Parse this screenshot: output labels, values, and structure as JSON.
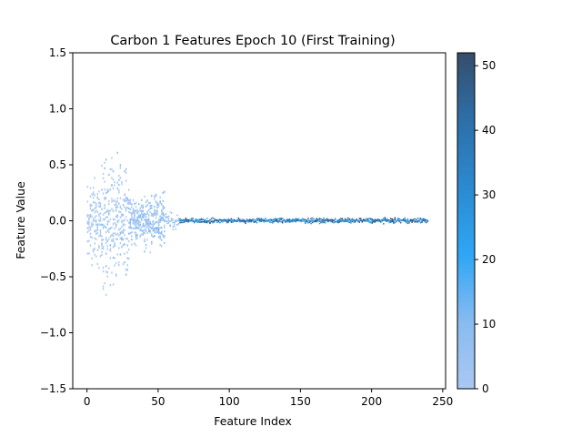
{
  "chart_data": {
    "type": "heatmap",
    "title": "Carbon 1 Features Epoch 10 (First Training)",
    "xlabel": "Feature Index",
    "ylabel": "Feature Value",
    "xlim": [
      -10,
      252
    ],
    "ylim": [
      -1.5,
      1.5
    ],
    "xticks": [
      0,
      50,
      100,
      150,
      200,
      250
    ],
    "xtick_labels": [
      "0",
      "50",
      "100",
      "150",
      "200",
      "250"
    ],
    "yticks": [
      -1.5,
      -1.0,
      -0.5,
      0.0,
      0.5,
      1.0,
      1.5
    ],
    "ytick_labels": [
      "−1.5",
      "−1.0",
      "−0.5",
      "0.0",
      "0.5",
      "1.0",
      "1.5"
    ],
    "colorbar": {
      "range": [
        0,
        52
      ],
      "ticks": [
        0,
        10,
        20,
        30,
        40,
        50
      ],
      "tick_labels": [
        "0",
        "10",
        "20",
        "30",
        "40",
        "50"
      ],
      "colors": [
        "#aac8f2",
        "#88bbf0",
        "#2ea6f5",
        "#2b8ad0",
        "#2d6fa8",
        "#354d6b"
      ]
    },
    "regions": [
      {
        "x": [
          0,
          10
        ],
        "y_spread": 0.45,
        "count_level": 4
      },
      {
        "x": [
          10,
          20
        ],
        "y_spread": 0.8,
        "count_level": 5
      },
      {
        "x": [
          20,
          30
        ],
        "y_spread": 0.7,
        "count_level": 5
      },
      {
        "x": [
          30,
          40
        ],
        "y_spread": 0.25,
        "count_level": 6
      },
      {
        "x": [
          40,
          55
        ],
        "y_spread": 0.32,
        "count_level": 7
      },
      {
        "x": [
          55,
          65
        ],
        "y_spread": 0.12,
        "count_level": 10
      },
      {
        "x": [
          65,
          240
        ],
        "y_spread": 0.03,
        "count_level": 45
      }
    ]
  }
}
